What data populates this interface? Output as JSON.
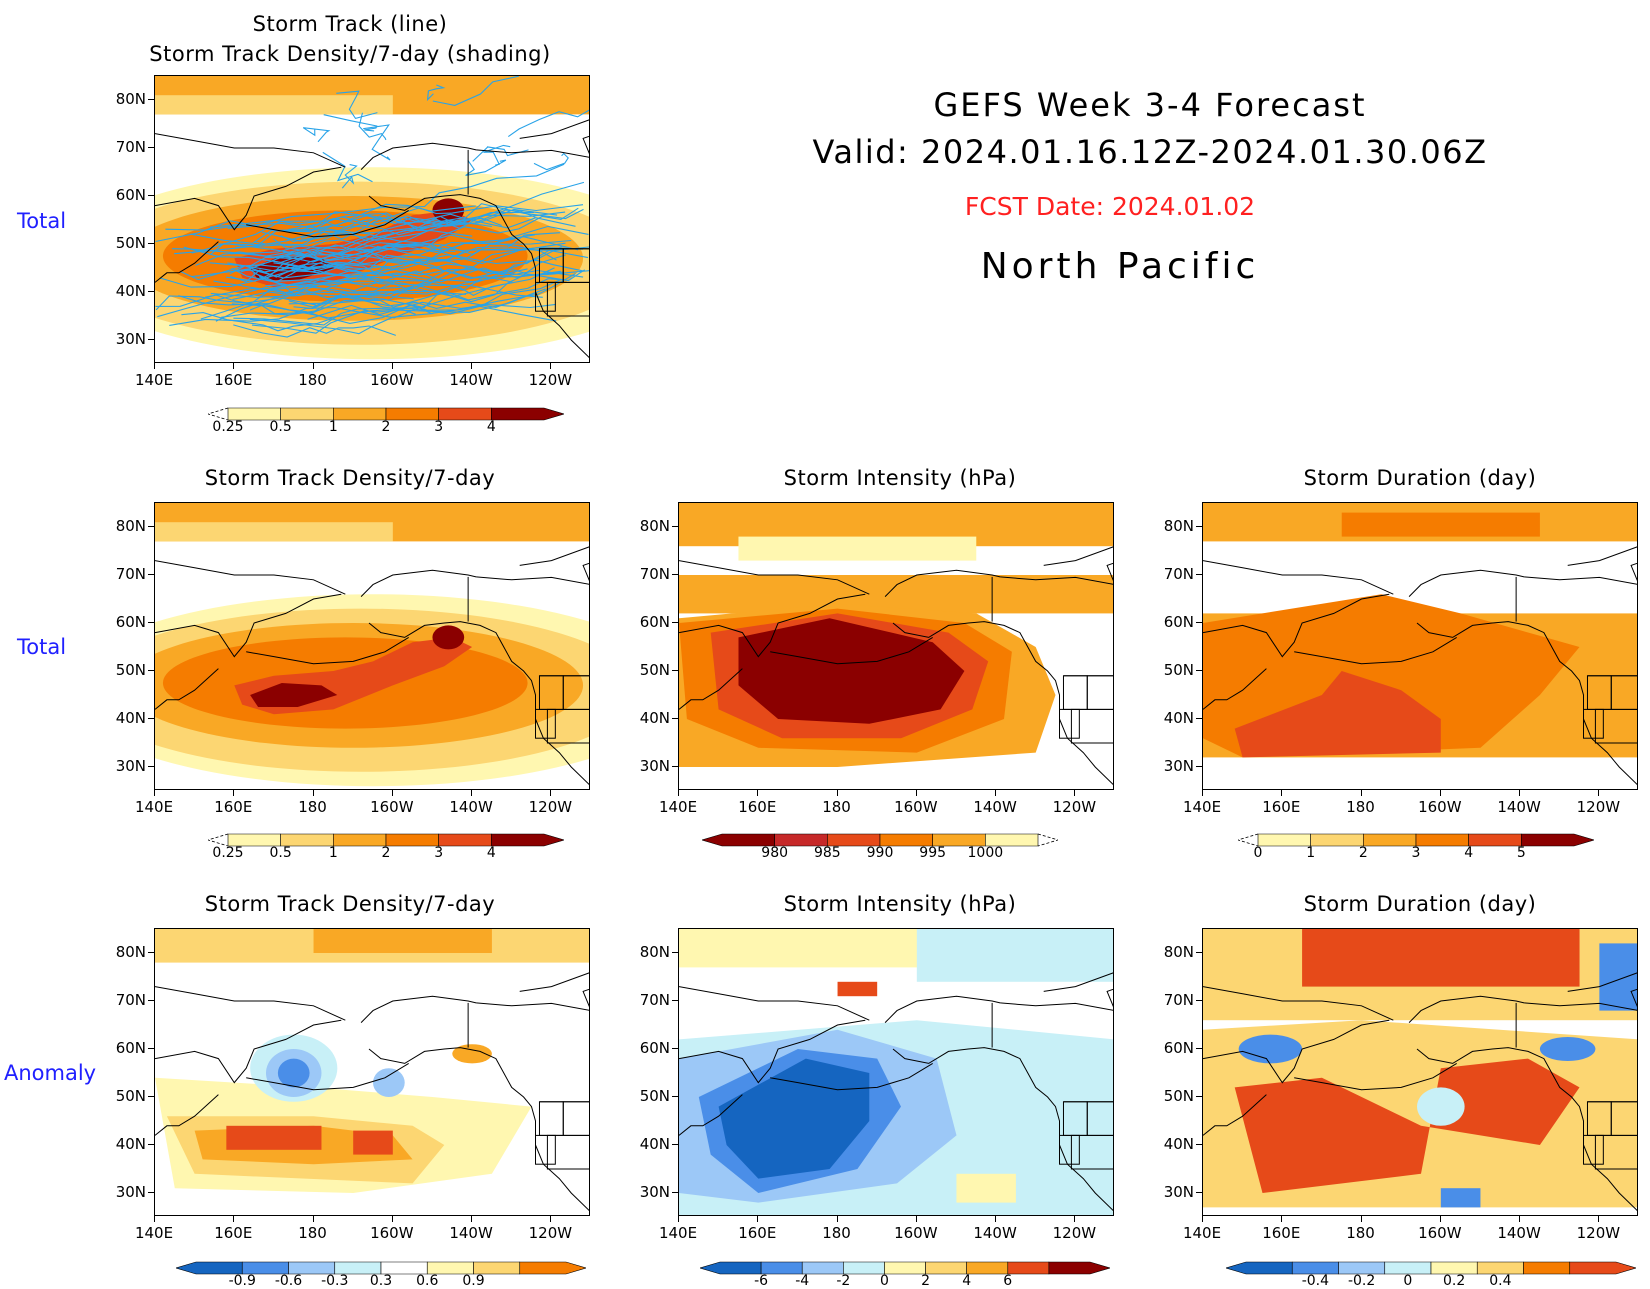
{
  "header": {
    "line1": "GEFS Week 3-4 Forecast",
    "line2": "Valid: 2024.01.16.12Z-2024.01.30.06Z",
    "fcst": "FCST Date: 2024.01.02",
    "region": "North Pacific"
  },
  "row_labels": {
    "total_top": "Total",
    "total_mid": "Total",
    "anomaly": "Anomaly"
  },
  "axes": {
    "lat_labels": [
      "80N",
      "70N",
      "60N",
      "50N",
      "40N",
      "30N"
    ],
    "lon_labels": [
      "140E",
      "160E",
      "180",
      "160W",
      "140W",
      "120W"
    ]
  },
  "colors": {
    "warm": [
      "#fff7b0",
      "#fcd672",
      "#f9a825",
      "#f57c00",
      "#e64a19",
      "#c62828",
      "#8b0000"
    ],
    "cool": [
      "#1565c0",
      "#4a8ee8",
      "#9cc8f7",
      "#c8f0f7"
    ],
    "track_line": "#29a3e8"
  },
  "panels": {
    "p1": {
      "title1": "Storm Track (line)",
      "title2": "Storm Track Density/7-day (shading)"
    },
    "p2": {
      "title": "Storm Track Density/7-day"
    },
    "p3": {
      "title": "Storm Intensity (hPa)"
    },
    "p4": {
      "title": "Storm Duration (day)"
    },
    "p5": {
      "title": "Storm Track Density/7-day"
    },
    "p6": {
      "title": "Storm Intensity (hPa)"
    },
    "p7": {
      "title": "Storm Duration (day)"
    }
  },
  "colorbars": {
    "density": [
      "0.25",
      "0.5",
      "1",
      "2",
      "3",
      "4"
    ],
    "intensity": [
      "980",
      "985",
      "990",
      "995",
      "1000"
    ],
    "duration": [
      "0",
      "1",
      "2",
      "3",
      "4",
      "5"
    ],
    "density_anom": [
      "-0.9",
      "-0.6",
      "-0.3",
      "0.3",
      "0.6",
      "0.9"
    ],
    "intensity_anom": [
      "-6",
      "-4",
      "-2",
      "0",
      "2",
      "4",
      "6"
    ],
    "duration_anom": [
      "-0.4",
      "-0.2",
      "0",
      "0.2",
      "0.4"
    ]
  },
  "chart_data": [
    {
      "type": "heatmap",
      "title": "Storm Track (line) / Storm Track Density/7-day (shading)",
      "x_range": [
        "140E",
        "110W"
      ],
      "y_range": [
        "25N",
        "85N"
      ],
      "levels": [
        0.25,
        0.5,
        1,
        2,
        3,
        4
      ],
      "max_center": {
        "lon": "175E",
        "lat": "45N",
        "value": 4
      }
    },
    {
      "type": "heatmap",
      "title": "Storm Track Density/7-day",
      "levels": [
        0.25,
        0.5,
        1,
        2,
        3,
        4
      ],
      "max_center": {
        "lon": "175E",
        "lat": "45N",
        "value": 4
      }
    },
    {
      "type": "heatmap",
      "title": "Storm Intensity (hPa)",
      "levels": [
        980,
        985,
        990,
        995,
        1000
      ],
      "min_center": {
        "lon": "180",
        "lat": "50N",
        "value": 980
      }
    },
    {
      "type": "heatmap",
      "title": "Storm Duration (day)",
      "levels": [
        0,
        1,
        2,
        3,
        4,
        5
      ]
    },
    {
      "type": "heatmap",
      "title": "Storm Track Density/7-day",
      "levels": [
        -0.9,
        -0.6,
        -0.3,
        0.3,
        0.6,
        0.9
      ]
    },
    {
      "type": "heatmap",
      "title": "Storm Intensity (hPa)",
      "levels": [
        -6,
        -4,
        -2,
        0,
        2,
        4,
        6
      ]
    },
    {
      "type": "heatmap",
      "title": "Storm Duration (day)",
      "levels": [
        -0.4,
        -0.2,
        0,
        0.2,
        0.4
      ]
    }
  ]
}
